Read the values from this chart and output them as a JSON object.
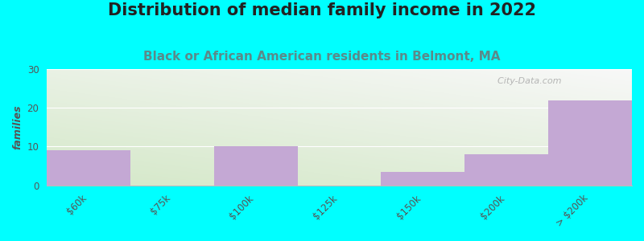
{
  "title": "Distribution of median family income in 2022",
  "subtitle": "Black or African American residents in Belmont, MA",
  "categories": [
    "$60k",
    "$75k",
    "$100k",
    "$125k",
    "$150k",
    "$200k",
    "> $200k"
  ],
  "values": [
    9,
    0,
    10,
    0,
    3.5,
    8,
    22
  ],
  "bar_color": "#c4a8d4",
  "background_color": "#00ffff",
  "grad_bottom_left": "#d4e8c8",
  "grad_top_right": "#f8f8f8",
  "ylim": [
    0,
    30
  ],
  "yticks": [
    0,
    10,
    20,
    30
  ],
  "ylabel": "families",
  "title_fontsize": 15,
  "title_color": "#222222",
  "subtitle_fontsize": 11,
  "subtitle_color": "#5a8a8a",
  "watermark": "City-Data.com",
  "bar_width": 1.0,
  "n_bars": 7
}
